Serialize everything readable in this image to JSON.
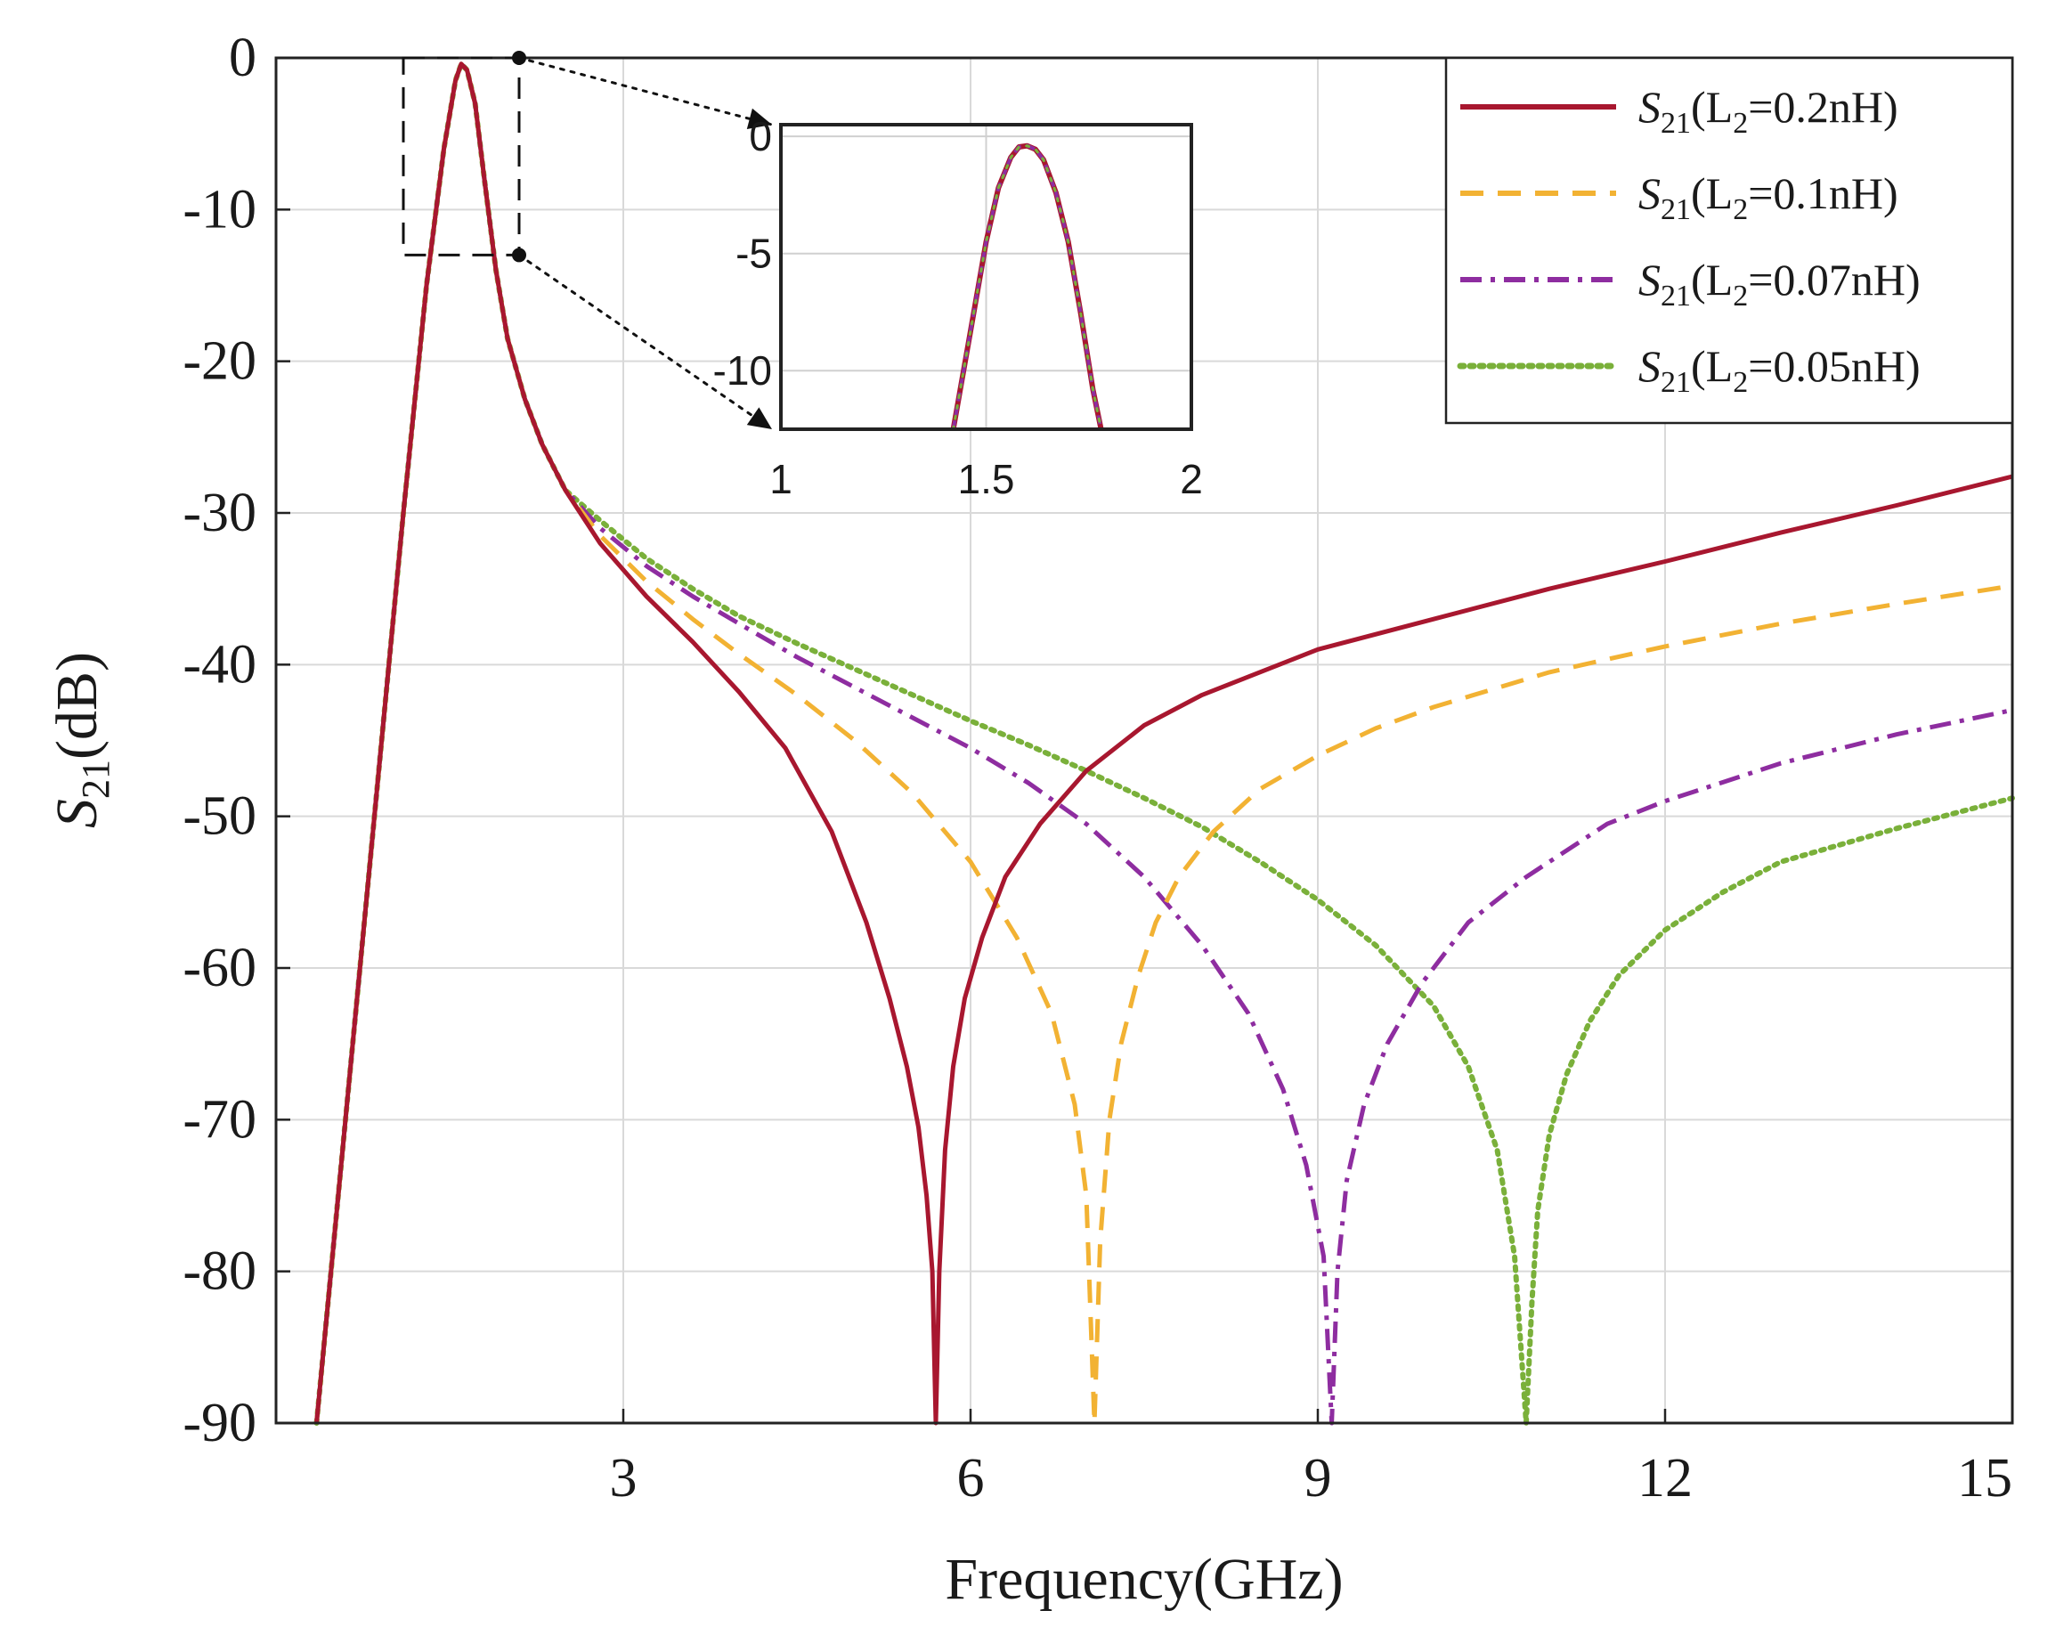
{
  "chart_data": {
    "type": "line",
    "title": "",
    "xlabel": "Frequency(GHz)",
    "ylabel": {
      "symbol": "S",
      "sub": "21",
      "unit": "(dB)"
    },
    "xlim": [
      0,
      15
    ],
    "ylim": [
      -90,
      0
    ],
    "xticks": [
      3,
      6,
      9,
      12,
      15
    ],
    "yticks": [
      0,
      -10,
      -20,
      -30,
      -40,
      -50,
      -60,
      -70,
      -80,
      -90
    ],
    "grid": true,
    "legend_position": "top-right",
    "series": [
      {
        "name": "S21(L2=0.2nH)",
        "label": {
          "symbol": "S",
          "sub": "21",
          "open": "(L",
          "lsub": "2",
          "rest": "=0.2nH)"
        },
        "color": "#a8172f",
        "style": "solid",
        "x": [
          0.35,
          0.6,
          0.85,
          1.1,
          1.3,
          1.45,
          1.55,
          1.6,
          1.65,
          1.72,
          1.8,
          1.9,
          2.0,
          2.15,
          2.3,
          2.5,
          2.8,
          3.2,
          3.6,
          4.0,
          4.4,
          4.8,
          5.1,
          5.3,
          5.45,
          5.55,
          5.62,
          5.67,
          5.7,
          5.73,
          5.78,
          5.85,
          5.95,
          6.1,
          6.3,
          6.6,
          7.0,
          7.5,
          8.0,
          9.0,
          10.0,
          11.0,
          12.0,
          13.0,
          14.0,
          15.0
        ],
        "y": [
          -90,
          -70,
          -50,
          -30,
          -15,
          -6,
          -1.5,
          -0.4,
          -0.8,
          -3,
          -8,
          -14,
          -18.5,
          -22.5,
          -25.5,
          -28.5,
          -32,
          -35.5,
          -38.5,
          -41.8,
          -45.5,
          -51,
          -57,
          -62,
          -66.5,
          -70.5,
          -75,
          -80,
          -90,
          -80,
          -72,
          -66.5,
          -62,
          -58,
          -54,
          -50.5,
          -47,
          -44,
          -42,
          -39,
          -37,
          -35,
          -33.2,
          -31.3,
          -29.5,
          -27.6
        ]
      },
      {
        "name": "S21(L2=0.1nH)",
        "label": {
          "symbol": "S",
          "sub": "21",
          "open": "(L",
          "lsub": "2",
          "rest": "=0.1nH)"
        },
        "color": "#f2b233",
        "style": "dashed",
        "x": [
          0.35,
          0.6,
          0.85,
          1.1,
          1.3,
          1.45,
          1.55,
          1.6,
          1.65,
          1.72,
          1.8,
          1.9,
          2.0,
          2.15,
          2.3,
          2.5,
          2.8,
          3.2,
          3.6,
          4.0,
          4.5,
          5.0,
          5.5,
          6.0,
          6.4,
          6.7,
          6.9,
          7.0,
          7.07,
          7.12,
          7.2,
          7.3,
          7.45,
          7.6,
          7.8,
          8.1,
          8.5,
          9.0,
          9.5,
          10.0,
          11.0,
          12.0,
          13.0,
          14.0,
          15.0
        ],
        "y": [
          -90,
          -70,
          -50,
          -30,
          -15,
          -6,
          -1.5,
          -0.4,
          -0.8,
          -3,
          -8,
          -14,
          -18.5,
          -22.5,
          -25.5,
          -28.5,
          -31.5,
          -34.5,
          -37,
          -39.3,
          -42,
          -45,
          -48.5,
          -53,
          -58,
          -63,
          -69,
          -75,
          -90,
          -78,
          -70,
          -65,
          -60.5,
          -57,
          -54,
          -51,
          -48.2,
          -46,
          -44.2,
          -42.8,
          -40.5,
          -38.8,
          -37.3,
          -36,
          -34.8
        ]
      },
      {
        "name": "S21(L2=0.07nH)",
        "label": {
          "symbol": "S",
          "sub": "21",
          "open": "(L",
          "lsub": "2",
          "rest": "=0.07nH)"
        },
        "color": "#8e2da0",
        "style": "dashdot",
        "x": [
          0.35,
          0.6,
          0.85,
          1.1,
          1.3,
          1.45,
          1.55,
          1.6,
          1.65,
          1.72,
          1.8,
          1.9,
          2.0,
          2.15,
          2.3,
          2.5,
          2.8,
          3.2,
          3.6,
          4.0,
          4.5,
          5.0,
          5.5,
          6.0,
          6.5,
          7.0,
          7.5,
          8.0,
          8.4,
          8.7,
          8.9,
          9.05,
          9.12,
          9.17,
          9.25,
          9.4,
          9.6,
          9.9,
          10.3,
          10.8,
          11.5,
          12.0,
          13.0,
          14.0,
          15.0
        ],
        "y": [
          -90,
          -70,
          -50,
          -30,
          -15,
          -6,
          -1.5,
          -0.4,
          -0.8,
          -3,
          -8,
          -14,
          -18.5,
          -22.5,
          -25.5,
          -28.5,
          -31,
          -33.5,
          -35.5,
          -37.3,
          -39.5,
          -41.5,
          -43.5,
          -45.5,
          -47.8,
          -50.5,
          -54,
          -58.5,
          -63,
          -68,
          -73,
          -79,
          -90,
          -80,
          -74,
          -69,
          -65,
          -61,
          -57,
          -54,
          -50.5,
          -49,
          -46.5,
          -44.6,
          -43
        ]
      },
      {
        "name": "S21(L2=0.05nH)",
        "label": {
          "symbol": "S",
          "sub": "21",
          "open": "(L",
          "lsub": "2",
          "rest": "=0.05nH)"
        },
        "color": "#7ab03a",
        "style": "dotted",
        "x": [
          0.35,
          0.6,
          0.85,
          1.1,
          1.3,
          1.45,
          1.55,
          1.6,
          1.65,
          1.72,
          1.8,
          1.9,
          2.0,
          2.15,
          2.3,
          2.5,
          2.8,
          3.2,
          3.6,
          4.0,
          4.5,
          5.0,
          5.5,
          6.0,
          6.5,
          7.0,
          7.5,
          8.0,
          8.5,
          9.0,
          9.5,
          10.0,
          10.3,
          10.55,
          10.7,
          10.8,
          10.85,
          10.9,
          11.0,
          11.15,
          11.35,
          11.6,
          12.0,
          12.5,
          13.0,
          14.0,
          15.0
        ],
        "y": [
          -90,
          -70,
          -50,
          -30,
          -15,
          -6,
          -1.5,
          -0.4,
          -0.8,
          -3,
          -8,
          -14,
          -18.5,
          -22.5,
          -25.5,
          -28.5,
          -30.5,
          -33,
          -35,
          -36.8,
          -38.6,
          -40.3,
          -42,
          -43.7,
          -45.3,
          -47,
          -48.8,
          -50.7,
          -53,
          -55.5,
          -58.5,
          -62.5,
          -66.5,
          -72,
          -79,
          -90,
          -82,
          -76,
          -71,
          -67,
          -63.5,
          -60.5,
          -57.5,
          -55,
          -53,
          -50.8,
          -48.8
        ]
      }
    ],
    "inset": {
      "xlim": [
        1,
        2
      ],
      "ylim": [
        -12.5,
        0.5
      ],
      "xticks": [
        1,
        1.5,
        2
      ],
      "xtick_labels": [
        "1",
        "1.5",
        "2"
      ],
      "yticks": [
        0,
        -5,
        -10
      ],
      "ytick_labels": [
        "0",
        "-5",
        "-10"
      ],
      "zoom_region": {
        "x": [
          1.1,
          2.1
        ],
        "y": [
          -13,
          0
        ]
      },
      "x": [
        1.42,
        1.46,
        1.5,
        1.53,
        1.56,
        1.58,
        1.6,
        1.62,
        1.64,
        1.67,
        1.7,
        1.73,
        1.76,
        1.78
      ],
      "y": [
        -12.5,
        -8.5,
        -4.5,
        -2.2,
        -0.9,
        -0.45,
        -0.4,
        -0.55,
        -1.0,
        -2.4,
        -4.5,
        -7.5,
        -10.8,
        -12.5
      ]
    }
  }
}
